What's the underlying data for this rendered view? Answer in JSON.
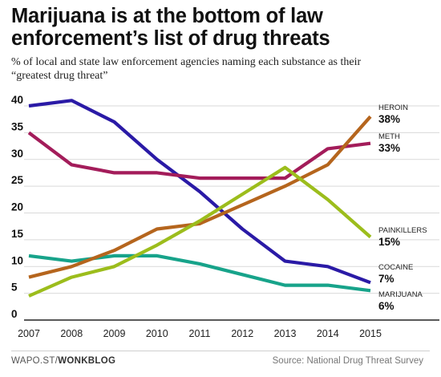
{
  "header": {
    "title_line1": "Marijuana is at the bottom of law",
    "title_line2": "enforcement’s list of drug threats",
    "subtitle_line1": "% of local and state law enforcement agencies naming each substance as their",
    "subtitle_line2": "“greatest drug threat”"
  },
  "footer": {
    "source_prefix": "WAPO.ST/",
    "source_brand": "WONKBLOG",
    "source_note": "Source: National Drug Threat Survey"
  },
  "chart_data": {
    "type": "line",
    "title": "Marijuana is at the bottom of law enforcement’s list of drug threats",
    "subtitle": "% of local and state law enforcement agencies naming each substance as their “greatest drug threat”",
    "xlabel": "",
    "ylabel": "",
    "x": [
      "2007",
      "2008",
      "2009",
      "2010",
      "2011",
      "2012",
      "2013",
      "2014",
      "2015"
    ],
    "ylim": [
      0,
      40
    ],
    "yticks": [
      "0",
      "5",
      "10",
      "15",
      "20",
      "25",
      "30",
      "35",
      "40"
    ],
    "grid": true,
    "legend": "direct labels at right end of lines",
    "series": [
      {
        "name": "HEROIN",
        "end_label": "38%",
        "color": "#b5651d",
        "values": [
          8,
          10,
          13,
          17,
          18,
          21.5,
          25,
          29,
          38
        ]
      },
      {
        "name": "METH",
        "end_label": "33%",
        "color": "#a31c5a",
        "values": [
          35,
          29,
          27.5,
          27.5,
          26.5,
          26.5,
          26.5,
          32,
          33
        ]
      },
      {
        "name": "PAINKILLERS",
        "end_label": "15%",
        "color": "#9cbd1c",
        "values": [
          4.5,
          8,
          10,
          14,
          18.5,
          23.5,
          28.5,
          22.5,
          15.5
        ]
      },
      {
        "name": "COCAINE",
        "end_label": "7%",
        "color": "#2a1aa6",
        "values": [
          40,
          41,
          37,
          30,
          24,
          17,
          11,
          10,
          7
        ]
      },
      {
        "name": "MARIJUANA",
        "end_label": "6%",
        "color": "#17a38a",
        "values": [
          12,
          11,
          12,
          12,
          10.5,
          8.5,
          6.5,
          6.5,
          5.5
        ]
      }
    ]
  }
}
